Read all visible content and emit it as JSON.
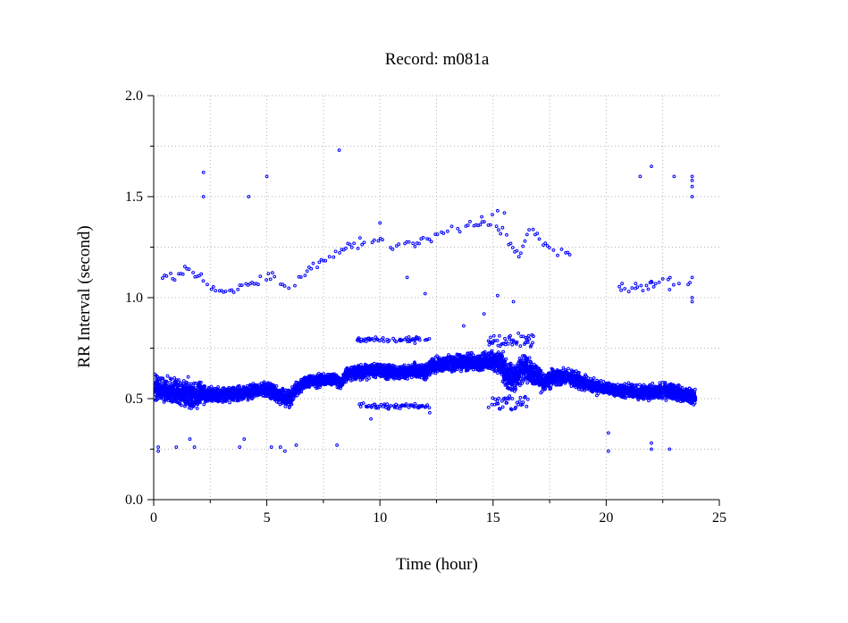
{
  "chart_data": {
    "type": "scatter",
    "title": "Record:  m081a",
    "xlabel": "Time (hour)",
    "ylabel": "RR Interval (second)",
    "xlim": [
      0,
      25
    ],
    "ylim": [
      0.0,
      2.0
    ],
    "x_ticks": [
      0,
      5,
      10,
      15,
      20,
      25
    ],
    "x_tick_labels": [
      "0",
      "5",
      "10",
      "15",
      "20",
      "25"
    ],
    "y_ticks": [
      0.0,
      0.5,
      1.0,
      1.5,
      2.0
    ],
    "y_tick_labels": [
      "0.0",
      "0.5",
      "1.0",
      "1.5",
      "2.0"
    ],
    "grid": true,
    "marker_color": "#0000ff",
    "baseline": [
      [
        0.0,
        0.55
      ],
      [
        0.5,
        0.54
      ],
      [
        1.0,
        0.53
      ],
      [
        1.5,
        0.52
      ],
      [
        2.0,
        0.52
      ],
      [
        2.5,
        0.52
      ],
      [
        3.0,
        0.52
      ],
      [
        3.5,
        0.52
      ],
      [
        4.0,
        0.53
      ],
      [
        4.5,
        0.54
      ],
      [
        5.0,
        0.55
      ],
      [
        5.5,
        0.52
      ],
      [
        6.0,
        0.5
      ],
      [
        6.3,
        0.55
      ],
      [
        6.7,
        0.58
      ],
      [
        7.0,
        0.59
      ],
      [
        7.5,
        0.59
      ],
      [
        8.0,
        0.6
      ],
      [
        8.3,
        0.57
      ],
      [
        8.5,
        0.62
      ],
      [
        9.0,
        0.63
      ],
      [
        9.5,
        0.64
      ],
      [
        10.0,
        0.64
      ],
      [
        10.5,
        0.63
      ],
      [
        11.0,
        0.63
      ],
      [
        11.5,
        0.64
      ],
      [
        12.0,
        0.63
      ],
      [
        12.3,
        0.66
      ],
      [
        12.7,
        0.67
      ],
      [
        13.0,
        0.67
      ],
      [
        13.5,
        0.68
      ],
      [
        14.0,
        0.68
      ],
      [
        14.5,
        0.68
      ],
      [
        15.0,
        0.69
      ],
      [
        15.3,
        0.68
      ],
      [
        15.6,
        0.62
      ],
      [
        16.0,
        0.6
      ],
      [
        16.3,
        0.66
      ],
      [
        16.8,
        0.62
      ],
      [
        17.2,
        0.58
      ],
      [
        17.6,
        0.6
      ],
      [
        18.0,
        0.61
      ],
      [
        18.5,
        0.6
      ],
      [
        19.0,
        0.58
      ],
      [
        19.5,
        0.56
      ],
      [
        20.0,
        0.55
      ],
      [
        20.5,
        0.54
      ],
      [
        21.0,
        0.54
      ],
      [
        21.5,
        0.53
      ],
      [
        22.0,
        0.53
      ],
      [
        22.5,
        0.54
      ],
      [
        23.0,
        0.53
      ],
      [
        23.5,
        0.52
      ],
      [
        23.9,
        0.51
      ]
    ],
    "spread": [
      [
        0.0,
        0.08
      ],
      [
        1.0,
        0.08
      ],
      [
        1.7,
        0.1
      ],
      [
        2.5,
        0.05
      ],
      [
        5.0,
        0.05
      ],
      [
        6.0,
        0.06
      ],
      [
        6.5,
        0.04
      ],
      [
        8.0,
        0.04
      ],
      [
        9.0,
        0.05
      ],
      [
        12.0,
        0.05
      ],
      [
        14.8,
        0.06
      ],
      [
        15.5,
        0.1
      ],
      [
        16.5,
        0.09
      ],
      [
        17.5,
        0.06
      ],
      [
        19.0,
        0.05
      ],
      [
        20.0,
        0.04
      ],
      [
        22.0,
        0.05
      ],
      [
        23.9,
        0.05
      ]
    ],
    "upper_trend": [
      [
        0.3,
        1.08
      ],
      [
        1.0,
        1.1
      ],
      [
        1.6,
        1.15
      ],
      [
        2.5,
        1.05
      ],
      [
        3.5,
        1.02
      ],
      [
        4.5,
        1.08
      ],
      [
        5.2,
        1.12
      ],
      [
        6.0,
        1.05
      ],
      [
        7.0,
        1.15
      ],
      [
        8.0,
        1.2
      ],
      [
        9.0,
        1.28
      ],
      [
        9.5,
        1.3
      ],
      [
        10.0,
        1.27
      ],
      [
        11.0,
        1.25
      ],
      [
        12.0,
        1.28
      ],
      [
        13.0,
        1.33
      ],
      [
        14.0,
        1.37
      ],
      [
        15.0,
        1.38
      ],
      [
        15.6,
        1.3
      ],
      [
        16.2,
        1.2
      ],
      [
        16.6,
        1.35
      ],
      [
        17.0,
        1.3
      ],
      [
        17.8,
        1.22
      ],
      [
        18.6,
        1.23
      ]
    ],
    "upper_trend_late": [
      [
        20.5,
        1.05
      ],
      [
        21.5,
        1.05
      ],
      [
        22.5,
        1.1
      ],
      [
        23.8,
        1.05
      ]
    ],
    "ectopic_bands": [
      {
        "x_range": [
          9.0,
          12.2
        ],
        "y": 0.79,
        "spread": 0.02
      },
      {
        "x_range": [
          9.0,
          12.2
        ],
        "y": 0.46,
        "spread": 0.02
      },
      {
        "x_range": [
          14.8,
          16.8
        ],
        "y": 0.78,
        "spread": 0.06
      },
      {
        "x_range": [
          14.8,
          16.8
        ],
        "y": 0.48,
        "spread": 0.05
      }
    ],
    "outliers": [
      [
        0.2,
        0.26
      ],
      [
        0.2,
        0.24
      ],
      [
        1.0,
        0.26
      ],
      [
        1.6,
        0.3
      ],
      [
        1.8,
        0.26
      ],
      [
        2.2,
        1.62
      ],
      [
        2.2,
        1.5
      ],
      [
        3.8,
        0.26
      ],
      [
        4.0,
        0.3
      ],
      [
        4.2,
        1.5
      ],
      [
        5.0,
        1.6
      ],
      [
        5.2,
        0.26
      ],
      [
        5.6,
        0.26
      ],
      [
        5.8,
        0.24
      ],
      [
        6.3,
        0.27
      ],
      [
        8.1,
        0.27
      ],
      [
        8.2,
        1.73
      ],
      [
        12.0,
        1.02
      ],
      [
        11.2,
        1.1
      ],
      [
        10.0,
        1.37
      ],
      [
        14.5,
        1.4
      ],
      [
        15.2,
        1.43
      ],
      [
        15.5,
        1.42
      ],
      [
        15.2,
        1.01
      ],
      [
        13.7,
        0.86
      ],
      [
        14.6,
        0.92
      ],
      [
        15.9,
        0.98
      ],
      [
        12.2,
        0.43
      ],
      [
        9.6,
        0.4
      ],
      [
        20.1,
        0.33
      ],
      [
        20.1,
        0.24
      ],
      [
        21.5,
        1.6
      ],
      [
        22.0,
        1.65
      ],
      [
        22.0,
        0.28
      ],
      [
        22.0,
        0.25
      ],
      [
        23.0,
        1.6
      ],
      [
        22.8,
        0.25
      ],
      [
        23.8,
        1.6
      ],
      [
        23.8,
        1.58
      ],
      [
        23.8,
        1.55
      ],
      [
        23.8,
        1.5
      ],
      [
        23.8,
        1.1
      ],
      [
        23.8,
        1.0
      ],
      [
        23.8,
        0.98
      ],
      [
        22.8,
        1.04
      ],
      [
        22.0,
        1.08
      ],
      [
        21.3,
        1.07
      ],
      [
        21.0,
        1.03
      ],
      [
        20.7,
        1.07
      ]
    ]
  }
}
